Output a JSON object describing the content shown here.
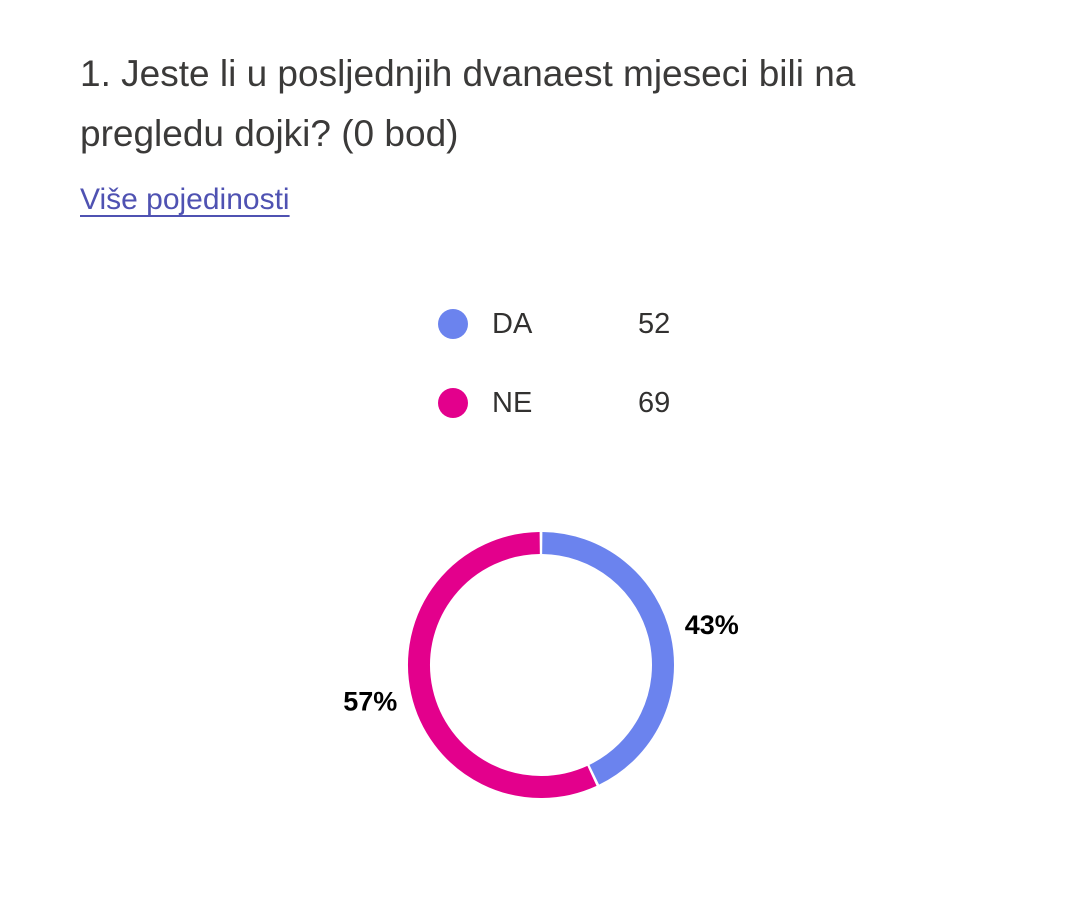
{
  "question": {
    "title": "1. Jeste li u posljednjih dvanaest mjeseci bili na pregledu dojki? (0 bod)",
    "details_link": "Više pojedinosti"
  },
  "colors": {
    "da": "#6b83ee",
    "ne": "#e3008c",
    "link": "#4f52b2"
  },
  "legend": [
    {
      "label": "DA",
      "count": "52",
      "color": "#6b83ee",
      "icon": "circle-dot-icon"
    },
    {
      "label": "NE",
      "count": "69",
      "color": "#e3008c",
      "icon": "circle-dot-icon"
    }
  ],
  "chart_data": {
    "type": "pie",
    "variant": "donut",
    "categories": [
      "DA",
      "NE"
    ],
    "values": [
      52,
      69
    ],
    "percent_labels": [
      "43%",
      "57%"
    ],
    "colors": [
      "#6b83ee",
      "#e3008c"
    ],
    "title": "",
    "legend_position": "top"
  }
}
